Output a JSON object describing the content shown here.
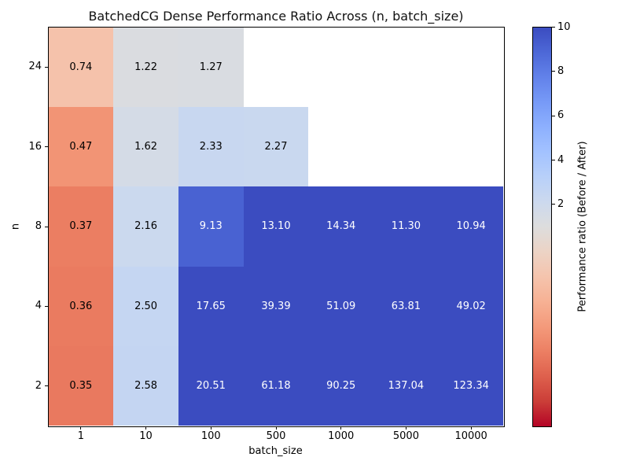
{
  "chart_data": {
    "type": "heatmap",
    "title": "BatchedCG Dense Performance Ratio Across (n, batch_size)",
    "xlabel": "batch_size",
    "ylabel": "n",
    "x_categories": [
      "1",
      "10",
      "100",
      "500",
      "1000",
      "5000",
      "10000"
    ],
    "y_categories": [
      "24",
      "16",
      "8",
      "4",
      "2"
    ],
    "values": [
      [
        0.74,
        1.22,
        1.27,
        null,
        null,
        null,
        null
      ],
      [
        0.47,
        1.62,
        2.33,
        2.27,
        null,
        null,
        null
      ],
      [
        0.37,
        2.16,
        9.13,
        13.1,
        14.34,
        11.3,
        10.94
      ],
      [
        0.36,
        2.5,
        17.65,
        39.39,
        51.09,
        63.81,
        49.02
      ],
      [
        0.35,
        2.58,
        20.51,
        61.18,
        90.25,
        137.04,
        123.34
      ]
    ],
    "value_decimals": 2,
    "missing_cell_color": "#ffffff",
    "colormap": "coolwarm_r",
    "norm": {
      "type": "two-slope",
      "vmin": 0,
      "vcenter": 1,
      "vmax": 10
    },
    "grid": "off",
    "legend": "none",
    "colorbar": {
      "label": "Performance ratio (Before / After)",
      "ticks": [
        10,
        8,
        6,
        4,
        2
      ],
      "top_value": 10,
      "center_value": 1,
      "top_color": "#3b4cc0",
      "center_color": "#dddddd",
      "bottom_color": "#b40426"
    }
  }
}
